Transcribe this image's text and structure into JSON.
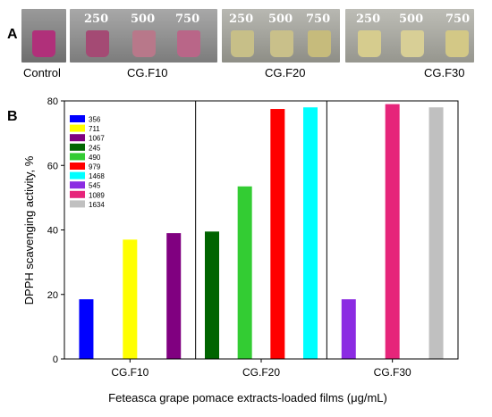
{
  "panel_a": {
    "letter": "A",
    "control_label": "Control",
    "groups": [
      {
        "label": "CG.F10",
        "concentrations": [
          "250",
          "500",
          "750"
        ]
      },
      {
        "label": "CG.F20",
        "concentrations": [
          "250",
          "500",
          "750"
        ]
      },
      {
        "label": "CG.F30",
        "concentrations": [
          "250",
          "500",
          "750"
        ]
      }
    ]
  },
  "panel_b": {
    "letter": "B"
  },
  "chart_data": {
    "type": "bar",
    "ylabel": "DPPH scavenging activity, %",
    "xlabel": "Feteasca grape pomace extracts-loaded films (μg/mL)",
    "ylim": [
      0,
      80
    ],
    "yticks": [
      "0",
      "20",
      "40",
      "60",
      "80"
    ],
    "groups": [
      "CG.F10",
      "CG.F20",
      "CG.F30"
    ],
    "legend_position": "top-left",
    "series": [
      {
        "name": "356",
        "group": "CG.F10",
        "value": 18.5,
        "color": "#0000ff"
      },
      {
        "name": "711",
        "group": "CG.F10",
        "value": 37,
        "color": "#ffff00"
      },
      {
        "name": "1067",
        "group": "CG.F10",
        "value": 39,
        "color": "#800080"
      },
      {
        "name": "245",
        "group": "CG.F20",
        "value": 39.5,
        "color": "#006400"
      },
      {
        "name": "490",
        "group": "CG.F20",
        "value": 53.5,
        "color": "#33cc33"
      },
      {
        "name": "979",
        "group": "CG.F20",
        "value": 77.5,
        "color": "#ff0000"
      },
      {
        "name": "1468",
        "group": "CG.F20",
        "value": 78,
        "color": "#00ffff"
      },
      {
        "name": "545",
        "group": "CG.F30",
        "value": 18.5,
        "color": "#8b2be2"
      },
      {
        "name": "1089",
        "group": "CG.F30",
        "value": 79,
        "color": "#e6257a"
      },
      {
        "name": "1634",
        "group": "CG.F30",
        "value": 78,
        "color": "#c0c0c0"
      }
    ]
  }
}
